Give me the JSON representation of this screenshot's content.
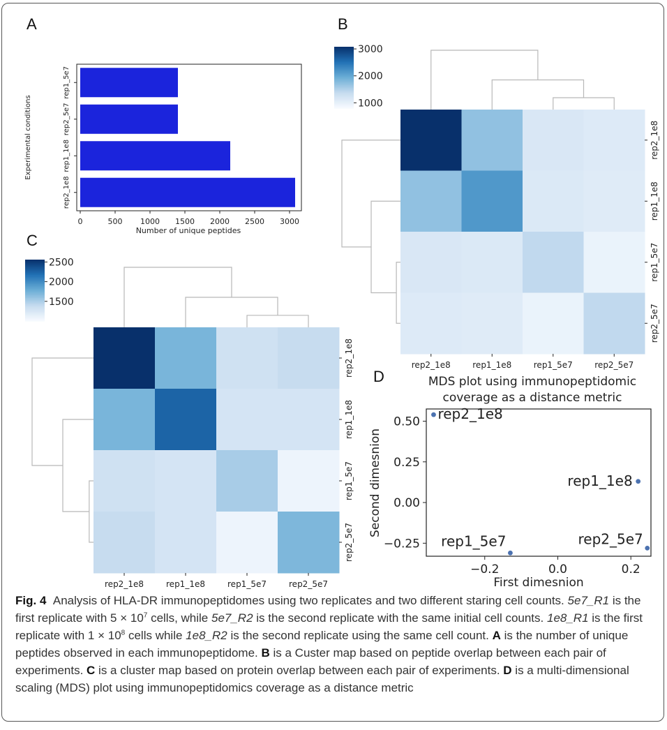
{
  "figure": {
    "panel_labels": [
      "A",
      "B",
      "C",
      "D"
    ]
  },
  "caption": {
    "label": "Fig. 4",
    "title": "Analysis of HLA-DR immunopeptidomes using two replicates and two different staring cell counts.",
    "s1_name": "5e7_R1",
    "s1_text_a": " is the first replicate with 5 × 10",
    "s1_exp": "7",
    "s1_text_b": " cells, while ",
    "s1_name2": "5e7_R2",
    "s1_text_c": " is the second replicate with the same initial cell counts. ",
    "s2_name": "1e8_R1",
    "s2_text_a": " is the first replicate with 1 × 10",
    "s2_exp": "8",
    "s2_text_b": " cells while ",
    "s2_name2": "1e8_R2",
    "s2_text_c": " is the second replicate using the same cell count. ",
    "A_key": "A",
    "A_text": " is the number of unique peptides observed in each immunopeptidome. ",
    "B_key": "B",
    "B_text": " is a Custer map based on peptide overlap between each pair of experiments. ",
    "C_key": "C",
    "C_text": " is a cluster map based on protein overlap between each pair of experiments. ",
    "D_key": "D",
    "D_text": " is a multi-dimensional scaling (MDS) plot using immunopeptidomics coverage as a distance metric"
  },
  "chart_data": [
    {
      "panel": "A",
      "type": "bar",
      "orientation": "horizontal",
      "categories": [
        "rep1_5e7",
        "rep2_5e7",
        "rep1_1e8",
        "rep2_1e8"
      ],
      "values": [
        1400,
        1400,
        2150,
        3080
      ],
      "xlabel": "Number of unique peptides",
      "ylabel": "Experimental conditions",
      "xticks": [
        0,
        500,
        1000,
        1500,
        2000,
        2500,
        3000
      ],
      "xlim": [
        -50,
        3170
      ],
      "bar_color": "#1b24dc"
    },
    {
      "panel": "B",
      "type": "heatmap",
      "labels": [
        "rep2_1e8",
        "rep1_1e8",
        "rep1_5e7",
        "rep2_5e7"
      ],
      "matrix": [
        [
          3080,
          1700,
          1150,
          1100
        ],
        [
          1700,
          2150,
          1120,
          1080
        ],
        [
          1150,
          1120,
          1400,
          950
        ],
        [
          1100,
          1080,
          950,
          1400
        ]
      ],
      "colorbar_ticks": [
        1000,
        2000,
        3000
      ],
      "vmin": 800,
      "vmax": 3080,
      "colormap": "Blues"
    },
    {
      "panel": "C",
      "type": "heatmap",
      "labels": [
        "rep2_1e8",
        "rep1_1e8",
        "rep1_5e7",
        "rep2_5e7"
      ],
      "matrix": [
        [
          2560,
          1720,
          1320,
          1380
        ],
        [
          1720,
          2250,
          1280,
          1280
        ],
        [
          1320,
          1280,
          1520,
          1080
        ],
        [
          1380,
          1280,
          1080,
          1700
        ]
      ],
      "colorbar_ticks": [
        1500,
        2000,
        2500
      ],
      "vmin": 1000,
      "vmax": 2560,
      "colormap": "Blues"
    },
    {
      "panel": "D",
      "type": "scatter",
      "title_line1": "MDS plot using immunopeptidomic",
      "title_line2": "coverage as a distance metric",
      "xlabel": "First dimesnion",
      "ylabel": "Second dimesnion",
      "xticks": [
        -0.2,
        0.0,
        0.2
      ],
      "yticks": [
        0.5,
        0.25,
        0.0,
        -0.25
      ],
      "ytick_labels": [
        "0.50",
        "0.25",
        "0.00",
        "−0.25"
      ],
      "xtick_labels": [
        "−0.2",
        "0.0",
        "0.2"
      ],
      "xlim": [
        -0.36,
        0.255
      ],
      "ylim": [
        -0.33,
        0.575
      ],
      "points": [
        {
          "label": "rep2_1e8",
          "x": -0.34,
          "y": 0.54
        },
        {
          "label": "rep1_1e8",
          "x": 0.22,
          "y": 0.13
        },
        {
          "label": "rep1_5e7",
          "x": -0.13,
          "y": -0.31
        },
        {
          "label": "rep2_5e7",
          "x": 0.245,
          "y": -0.28
        }
      ],
      "point_color": "#4c72b0"
    }
  ]
}
